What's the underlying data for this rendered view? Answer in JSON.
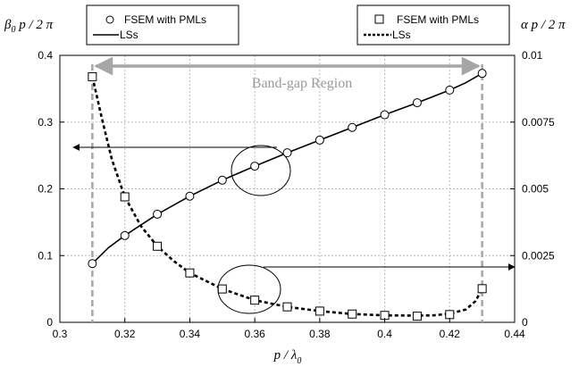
{
  "chart_data": {
    "type": "line",
    "xlabel_main": "p / λ",
    "xlabel_sub": "0",
    "ylabel_left_pre": "β",
    "ylabel_left_sub": "0",
    "ylabel_left_post": " p / 2 π",
    "ylabel_right": "α p / 2 π",
    "xlim": [
      0.3,
      0.44
    ],
    "ylim_left": [
      0,
      0.4
    ],
    "ylim_right": [
      0,
      0.01
    ],
    "xticks": [
      "0.3",
      "0.32",
      "0.34",
      "0.36",
      "0.38",
      "0.4",
      "0.42",
      "0.44"
    ],
    "yticks_left": [
      "0",
      "0.1",
      "0.2",
      "0.3",
      "0.4"
    ],
    "yticks_right": [
      "0",
      "0.0025",
      "0.005",
      "0.0075",
      "0.01"
    ],
    "grid": true,
    "legend_left": {
      "position": "top-left",
      "entries": [
        "FSEM with PMLs",
        "LSs"
      ]
    },
    "legend_right": {
      "position": "top-right",
      "entries": [
        "FSEM with PMLs",
        "LSs"
      ]
    },
    "band_gap": {
      "label": "Band-gap Region",
      "x_start": 0.31,
      "x_end": 0.43
    },
    "series": [
      {
        "axis": "left",
        "marker": "circle",
        "line": "solid",
        "x": [
          0.31,
          0.32,
          0.33,
          0.34,
          0.35,
          0.36,
          0.37,
          0.38,
          0.39,
          0.4,
          0.41,
          0.42,
          0.43
        ],
        "y": [
          0.088,
          0.13,
          0.162,
          0.189,
          0.213,
          0.234,
          0.254,
          0.273,
          0.292,
          0.311,
          0.329,
          0.348,
          0.373
        ]
      },
      {
        "axis": "right",
        "marker": "square",
        "line": "dashed",
        "x": [
          0.31,
          0.32,
          0.33,
          0.34,
          0.35,
          0.36,
          0.37,
          0.38,
          0.39,
          0.4,
          0.41,
          0.42,
          0.43
        ],
        "y": [
          0.0092,
          0.0047,
          0.00285,
          0.00185,
          0.00125,
          0.00083,
          0.00058,
          0.00042,
          0.00031,
          0.00026,
          0.00023,
          0.00029,
          0.00126
        ]
      }
    ],
    "line_left_x": [
      0.31,
      0.315,
      0.32,
      0.33,
      0.34,
      0.35,
      0.36,
      0.37,
      0.38,
      0.39,
      0.4,
      0.41,
      0.42,
      0.425,
      0.43
    ],
    "line_left_y": [
      0.088,
      0.112,
      0.13,
      0.162,
      0.189,
      0.213,
      0.234,
      0.254,
      0.273,
      0.292,
      0.311,
      0.329,
      0.348,
      0.359,
      0.373
    ],
    "line_right_x": [
      0.31,
      0.313,
      0.316,
      0.32,
      0.325,
      0.33,
      0.335,
      0.34,
      0.35,
      0.36,
      0.37,
      0.38,
      0.39,
      0.4,
      0.41,
      0.415,
      0.42,
      0.425,
      0.428,
      0.43
    ],
    "line_right_y": [
      0.0092,
      0.0076,
      0.0061,
      0.0047,
      0.0036,
      0.00285,
      0.0023,
      0.00185,
      0.00125,
      0.00083,
      0.00058,
      0.00042,
      0.00031,
      0.00026,
      0.00025,
      0.00026,
      0.00032,
      0.00048,
      0.0008,
      0.00126
    ]
  }
}
